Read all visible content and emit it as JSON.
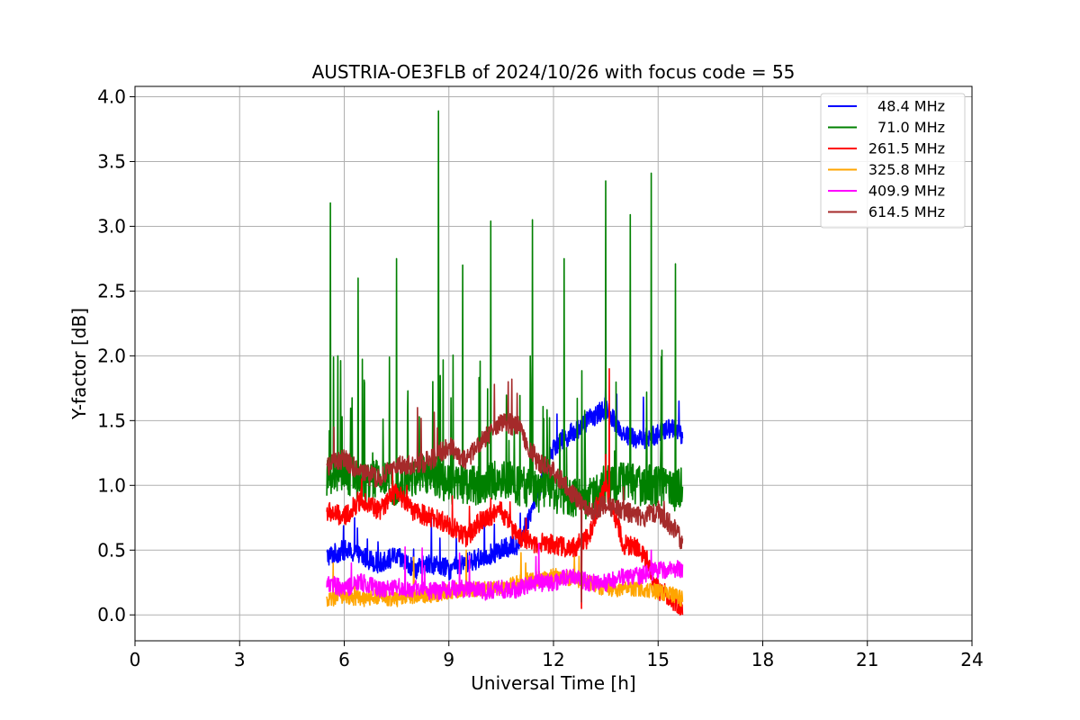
{
  "chart_data": {
    "type": "line",
    "title": "AUSTRIA-OE3FLB of 2024/10/26 with focus code = 55",
    "xlabel": "Universal Time [h]",
    "ylabel": "Y-factor [dB]",
    "xlim": [
      0,
      24
    ],
    "ylim": [
      -0.2,
      4.08
    ],
    "xticks": [
      0,
      3,
      6,
      9,
      12,
      15,
      18,
      21,
      24
    ],
    "xtick_labels": [
      "0",
      "3",
      "6",
      "9",
      "12",
      "15",
      "18",
      "21",
      "24"
    ],
    "yticks": [
      0.0,
      0.5,
      1.0,
      1.5,
      2.0,
      2.5,
      3.0,
      3.5,
      4.0
    ],
    "ytick_labels": [
      "0.0",
      "0.5",
      "1.0",
      "1.5",
      "2.0",
      "2.5",
      "3.0",
      "3.5",
      "4.0"
    ],
    "grid": true,
    "legend_position": "top-right",
    "series": [
      {
        "name": "48.4 MHz",
        "color": "#0000ff",
        "x": [
          5.5,
          6.0,
          6.5,
          7.0,
          7.5,
          8.0,
          8.5,
          9.0,
          9.5,
          10.0,
          10.5,
          11.0,
          11.5,
          12.0,
          12.5,
          13.0,
          13.5,
          14.0,
          14.5,
          15.0,
          15.5,
          15.7
        ],
        "y": [
          0.45,
          0.5,
          0.45,
          0.4,
          0.45,
          0.35,
          0.4,
          0.35,
          0.4,
          0.45,
          0.5,
          0.55,
          0.9,
          1.3,
          1.4,
          1.5,
          1.6,
          1.4,
          1.35,
          1.4,
          1.45,
          1.35
        ],
        "peaks": [
          [
            6.3,
            0.75
          ],
          [
            8.5,
            0.75
          ],
          [
            10.3,
            0.7
          ],
          [
            12.1,
            1.55
          ],
          [
            13.5,
            1.85
          ],
          [
            15.6,
            1.65
          ]
        ]
      },
      {
        "name": "71.0 MHz",
        "color": "#008000",
        "x": [
          5.5,
          6.0,
          6.5,
          7.0,
          7.5,
          8.0,
          8.5,
          9.0,
          9.5,
          10.0,
          10.5,
          11.0,
          11.5,
          12.0,
          12.5,
          13.0,
          13.5,
          14.0,
          14.5,
          15.0,
          15.5,
          15.7
        ],
        "y": [
          1.05,
          1.1,
          1.0,
          1.05,
          1.0,
          1.05,
          1.1,
          1.0,
          1.0,
          1.0,
          1.05,
          1.0,
          0.95,
          0.95,
          0.9,
          0.9,
          1.0,
          1.05,
          1.0,
          1.0,
          0.95,
          1.0
        ],
        "peaks": [
          [
            5.6,
            3.18
          ],
          [
            6.4,
            2.6
          ],
          [
            7.5,
            2.75
          ],
          [
            8.7,
            3.89
          ],
          [
            9.4,
            2.7
          ],
          [
            10.2,
            3.04
          ],
          [
            11.4,
            3.05
          ],
          [
            12.3,
            2.75
          ],
          [
            13.5,
            3.35
          ],
          [
            14.2,
            3.09
          ],
          [
            14.8,
            3.41
          ],
          [
            15.5,
            2.71
          ]
        ]
      },
      {
        "name": "261.5 MHz",
        "color": "#ff0000",
        "x": [
          5.5,
          6.0,
          6.5,
          7.0,
          7.5,
          8.0,
          8.5,
          9.0,
          9.5,
          10.0,
          10.5,
          11.0,
          11.5,
          12.0,
          12.5,
          13.0,
          13.5,
          14.0,
          14.5,
          15.0,
          15.5,
          15.7
        ],
        "y": [
          0.8,
          0.75,
          0.9,
          0.8,
          0.95,
          0.8,
          0.75,
          0.7,
          0.6,
          0.75,
          0.8,
          0.6,
          0.55,
          0.55,
          0.5,
          0.6,
          1.0,
          0.55,
          0.5,
          0.2,
          0.1,
          0.05
        ],
        "peaks": [
          [
            6.5,
            1.05
          ],
          [
            7.8,
            1.0
          ],
          [
            10.2,
            0.9
          ],
          [
            12.8,
            0.05
          ],
          [
            13.6,
            1.9
          ]
        ]
      },
      {
        "name": "325.8 MHz",
        "color": "#ffa500",
        "x": [
          5.5,
          6.0,
          6.5,
          7.0,
          7.5,
          8.0,
          8.5,
          9.0,
          9.5,
          10.0,
          10.5,
          11.0,
          11.5,
          12.0,
          12.5,
          13.0,
          13.5,
          14.0,
          14.5,
          15.0,
          15.5,
          15.7
        ],
        "y": [
          0.1,
          0.15,
          0.12,
          0.14,
          0.12,
          0.15,
          0.15,
          0.18,
          0.2,
          0.2,
          0.2,
          0.25,
          0.28,
          0.3,
          0.28,
          0.25,
          0.2,
          0.2,
          0.2,
          0.18,
          0.15,
          0.12
        ],
        "peaks": [
          [
            6.3,
            0.25
          ],
          [
            9.5,
            0.5
          ],
          [
            11.2,
            0.4
          ],
          [
            12.6,
            0.45
          ]
        ]
      },
      {
        "name": "409.9 MHz",
        "color": "#ff00ff",
        "x": [
          5.5,
          6.0,
          6.5,
          7.0,
          7.5,
          8.0,
          8.5,
          9.0,
          9.5,
          10.0,
          10.5,
          11.0,
          11.5,
          12.0,
          12.5,
          13.0,
          13.5,
          14.0,
          14.5,
          15.0,
          15.5,
          15.7
        ],
        "y": [
          0.25,
          0.2,
          0.25,
          0.2,
          0.22,
          0.2,
          0.18,
          0.2,
          0.2,
          0.18,
          0.2,
          0.2,
          0.25,
          0.25,
          0.3,
          0.25,
          0.25,
          0.3,
          0.3,
          0.35,
          0.35,
          0.35
        ],
        "peaks": [
          [
            6.2,
            0.4
          ],
          [
            8.3,
            0.38
          ],
          [
            11.5,
            0.45
          ],
          [
            14.8,
            0.5
          ]
        ]
      },
      {
        "name": "614.5 MHz",
        "color": "#a52a2a",
        "x": [
          5.5,
          6.0,
          6.5,
          7.0,
          7.5,
          8.0,
          8.5,
          9.0,
          9.5,
          10.0,
          10.5,
          11.0,
          11.5,
          12.0,
          12.5,
          13.0,
          13.5,
          14.0,
          14.5,
          15.0,
          15.5,
          15.7
        ],
        "y": [
          1.15,
          1.2,
          1.1,
          1.05,
          1.15,
          1.15,
          1.2,
          1.3,
          1.2,
          1.35,
          1.5,
          1.45,
          1.2,
          1.1,
          0.95,
          0.8,
          0.85,
          0.8,
          0.75,
          0.8,
          0.65,
          0.55
        ],
        "peaks": [
          [
            5.7,
            1.45
          ],
          [
            8.1,
            1.6
          ],
          [
            10.3,
            1.78
          ],
          [
            10.8,
            1.82
          ],
          [
            12.8,
            0.1
          ]
        ]
      }
    ]
  }
}
